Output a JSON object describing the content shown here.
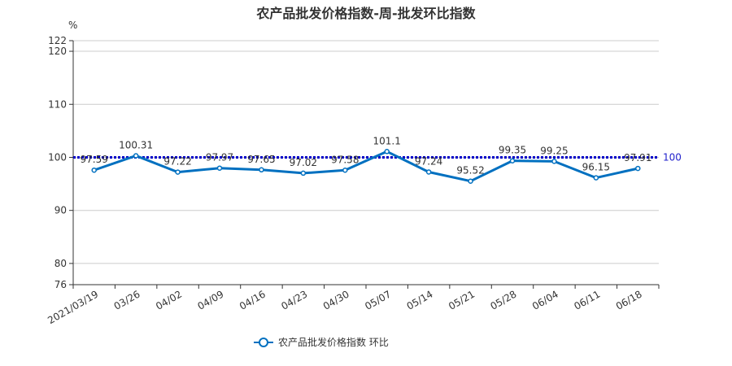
{
  "colors": {
    "series": "#0070c0",
    "reference_line": "#0000c8",
    "grid": "#cccccc",
    "axis": "#333333"
  },
  "chart_data": {
    "type": "line",
    "title": "农产品批发价格指数-周-批发环比指数",
    "unit": "%",
    "categories": [
      "2021/03/19",
      "03/26",
      "04/02",
      "04/09",
      "04/16",
      "04/23",
      "04/30",
      "05/07",
      "05/14",
      "05/21",
      "05/28",
      "06/04",
      "06/11",
      "06/18"
    ],
    "series": [
      {
        "name": "农产品批发价格指数  环比",
        "values": [
          97.59,
          100.31,
          97.22,
          97.97,
          97.65,
          97.02,
          97.58,
          101.1,
          97.24,
          95.52,
          99.35,
          99.25,
          96.15,
          97.91
        ],
        "labels": [
          "97.59",
          "100.31",
          "97.22",
          "97.97",
          "97.65",
          "97.02",
          "97.58",
          "101.1",
          "97.24",
          "95.52",
          "99.35",
          "99.25",
          "96.15",
          "97.91"
        ]
      }
    ],
    "ylim": [
      76,
      122
    ],
    "yticks": [
      76,
      80,
      90,
      100,
      110,
      120,
      122
    ],
    "reference_line": {
      "value": 100,
      "label": "100",
      "style": "dotted"
    },
    "grid": true,
    "legend_position": "bottom"
  }
}
